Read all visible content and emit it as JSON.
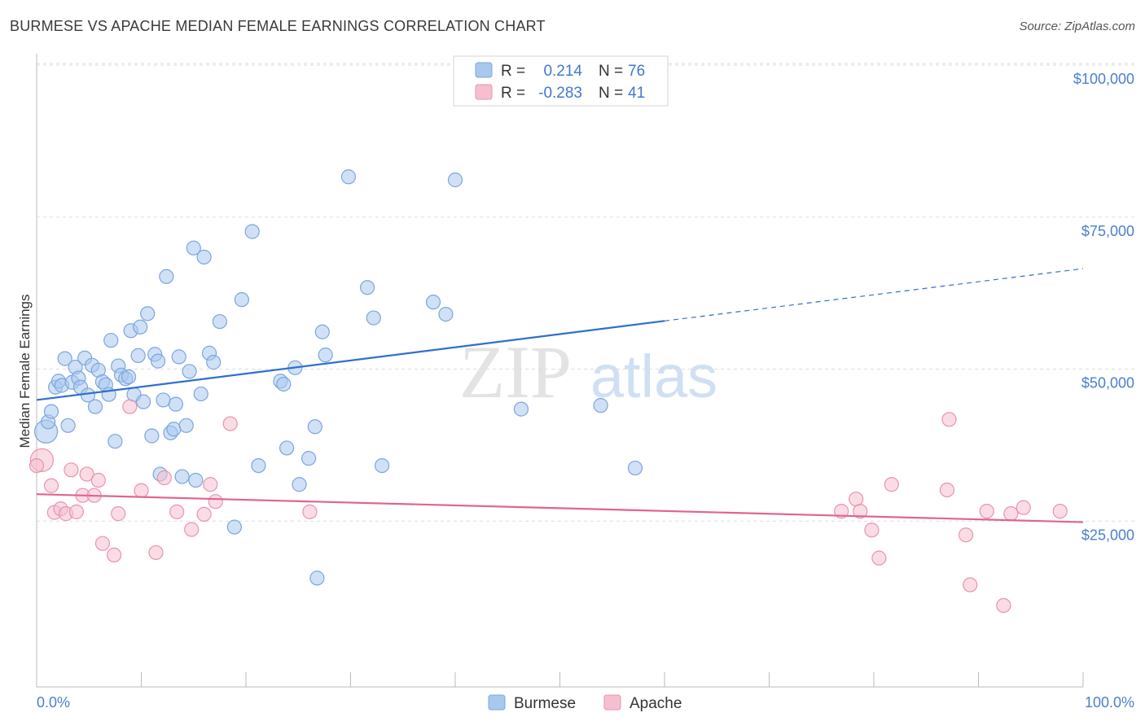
{
  "title": "BURMESE VS APACHE MEDIAN FEMALE EARNINGS CORRELATION CHART",
  "source": "Source: ZipAtlas.com",
  "watermark": {
    "zip": "ZIP",
    "atlas": "atlas"
  },
  "colors": {
    "burmese_fill": "#a9c8ee",
    "burmese_stroke": "#7aa6de",
    "burmese_line": "#2f6fce",
    "apache_fill": "#f6bfd0",
    "apache_stroke": "#e993ae",
    "apache_line": "#e0648f",
    "tick_text": "#4a7fd0",
    "grid": "#dddddd"
  },
  "legend": {
    "r_label": "R =",
    "n_label": "N =",
    "rows": [
      {
        "series": "Burmese",
        "r": "0.214",
        "n": "76"
      },
      {
        "series": "Apache",
        "r": "-0.283",
        "n": "41"
      }
    ]
  },
  "chart_data": {
    "type": "scatter",
    "title": "BURMESE VS APACHE MEDIAN FEMALE EARNINGS CORRELATION CHART",
    "xlabel": "",
    "ylabel": "Median Female Earnings",
    "xlim": [
      0,
      100
    ],
    "ylim": [
      0,
      105000
    ],
    "x_tick_labels": [
      "0.0%",
      "100.0%"
    ],
    "y_ticks": [
      25000,
      50000,
      75000,
      100000
    ],
    "y_tick_labels": [
      "$25,000",
      "$50,000",
      "$75,000",
      "$100,000"
    ],
    "grid": true,
    "legend_position": "top-center",
    "series": [
      {
        "name": "Burmese",
        "trend": {
          "x0": 0,
          "y0": 47200,
          "x1": 60,
          "y1": 60200,
          "dashed_to_x": 100,
          "dashed_to_y": 68800
        },
        "points": [
          {
            "x": 0.9,
            "y": 42000,
            "big": true
          },
          {
            "x": 1.1,
            "y": 43600
          },
          {
            "x": 1.4,
            "y": 45300
          },
          {
            "x": 1.8,
            "y": 49300
          },
          {
            "x": 2.1,
            "y": 50300
          },
          {
            "x": 2.4,
            "y": 49600
          },
          {
            "x": 2.7,
            "y": 54000
          },
          {
            "x": 3.0,
            "y": 43000
          },
          {
            "x": 3.4,
            "y": 50100
          },
          {
            "x": 3.7,
            "y": 52600
          },
          {
            "x": 4.0,
            "y": 50800
          },
          {
            "x": 4.2,
            "y": 49300
          },
          {
            "x": 4.6,
            "y": 54100
          },
          {
            "x": 4.9,
            "y": 48000
          },
          {
            "x": 5.3,
            "y": 52900
          },
          {
            "x": 5.6,
            "y": 46100
          },
          {
            "x": 5.9,
            "y": 52100
          },
          {
            "x": 6.3,
            "y": 50200
          },
          {
            "x": 6.6,
            "y": 49700
          },
          {
            "x": 6.9,
            "y": 48100
          },
          {
            "x": 7.1,
            "y": 57000
          },
          {
            "x": 7.5,
            "y": 40400
          },
          {
            "x": 7.8,
            "y": 52800
          },
          {
            "x": 8.1,
            "y": 51300
          },
          {
            "x": 8.5,
            "y": 50700
          },
          {
            "x": 8.8,
            "y": 51000
          },
          {
            "x": 9.0,
            "y": 58600
          },
          {
            "x": 9.3,
            "y": 48100
          },
          {
            "x": 9.7,
            "y": 54500
          },
          {
            "x": 9.9,
            "y": 59200
          },
          {
            "x": 10.2,
            "y": 46900
          },
          {
            "x": 10.6,
            "y": 61400
          },
          {
            "x": 11.0,
            "y": 41300
          },
          {
            "x": 11.3,
            "y": 54700
          },
          {
            "x": 11.6,
            "y": 53600
          },
          {
            "x": 11.8,
            "y": 35000
          },
          {
            "x": 12.1,
            "y": 47200
          },
          {
            "x": 12.4,
            "y": 67500
          },
          {
            "x": 12.8,
            "y": 41800
          },
          {
            "x": 13.1,
            "y": 42400
          },
          {
            "x": 13.3,
            "y": 46500
          },
          {
            "x": 13.6,
            "y": 54300
          },
          {
            "x": 13.9,
            "y": 34600
          },
          {
            "x": 14.3,
            "y": 43000
          },
          {
            "x": 14.6,
            "y": 51900
          },
          {
            "x": 15.0,
            "y": 72200
          },
          {
            "x": 15.2,
            "y": 34000
          },
          {
            "x": 15.7,
            "y": 48200
          },
          {
            "x": 16.0,
            "y": 70700
          },
          {
            "x": 16.5,
            "y": 54900
          },
          {
            "x": 16.9,
            "y": 53400
          },
          {
            "x": 17.5,
            "y": 60100
          },
          {
            "x": 18.9,
            "y": 26300
          },
          {
            "x": 19.6,
            "y": 63700
          },
          {
            "x": 20.6,
            "y": 74900
          },
          {
            "x": 21.2,
            "y": 36400
          },
          {
            "x": 23.3,
            "y": 50300
          },
          {
            "x": 23.6,
            "y": 49800
          },
          {
            "x": 23.9,
            "y": 39300
          },
          {
            "x": 24.7,
            "y": 52500
          },
          {
            "x": 25.1,
            "y": 33300
          },
          {
            "x": 26.0,
            "y": 37600
          },
          {
            "x": 26.6,
            "y": 42800
          },
          {
            "x": 26.8,
            "y": 17900
          },
          {
            "x": 27.3,
            "y": 58400
          },
          {
            "x": 27.6,
            "y": 54600
          },
          {
            "x": 29.8,
            "y": 83900
          },
          {
            "x": 31.6,
            "y": 65700
          },
          {
            "x": 32.2,
            "y": 60700
          },
          {
            "x": 33.0,
            "y": 36400
          },
          {
            "x": 37.9,
            "y": 63300
          },
          {
            "x": 39.1,
            "y": 61300
          },
          {
            "x": 40.0,
            "y": 83400
          },
          {
            "x": 46.3,
            "y": 45700
          },
          {
            "x": 53.9,
            "y": 46300
          },
          {
            "x": 57.2,
            "y": 36000
          }
        ]
      },
      {
        "name": "Apache",
        "trend": {
          "x0": 0,
          "y0": 31700,
          "x1": 100,
          "y1": 27100
        },
        "points": [
          {
            "x": 0.5,
            "y": 37300,
            "big": true
          },
          {
            "x": 1.4,
            "y": 33100
          },
          {
            "x": 1.7,
            "y": 28700
          },
          {
            "x": 2.3,
            "y": 29300
          },
          {
            "x": 2.8,
            "y": 28500
          },
          {
            "x": 3.3,
            "y": 35700
          },
          {
            "x": 3.8,
            "y": 28800
          },
          {
            "x": 4.4,
            "y": 31500
          },
          {
            "x": 4.8,
            "y": 35000
          },
          {
            "x": 5.5,
            "y": 31500
          },
          {
            "x": 5.9,
            "y": 34000
          },
          {
            "x": 6.3,
            "y": 23600
          },
          {
            "x": 7.4,
            "y": 21700
          },
          {
            "x": 7.8,
            "y": 28500
          },
          {
            "x": 8.9,
            "y": 46100
          },
          {
            "x": 10.0,
            "y": 32300
          },
          {
            "x": 11.4,
            "y": 22100
          },
          {
            "x": 12.2,
            "y": 34400
          },
          {
            "x": 13.4,
            "y": 28800
          },
          {
            "x": 14.8,
            "y": 25900
          },
          {
            "x": 16.0,
            "y": 28400
          },
          {
            "x": 16.6,
            "y": 33300
          },
          {
            "x": 17.1,
            "y": 30500
          },
          {
            "x": 18.5,
            "y": 43300
          },
          {
            "x": 26.1,
            "y": 28800
          },
          {
            "x": 76.9,
            "y": 28900
          },
          {
            "x": 78.3,
            "y": 30900
          },
          {
            "x": 78.7,
            "y": 28900
          },
          {
            "x": 79.8,
            "y": 25800
          },
          {
            "x": 80.5,
            "y": 21200
          },
          {
            "x": 81.7,
            "y": 33300
          },
          {
            "x": 87.0,
            "y": 32400
          },
          {
            "x": 87.2,
            "y": 44000
          },
          {
            "x": 88.8,
            "y": 25000
          },
          {
            "x": 89.2,
            "y": 16800
          },
          {
            "x": 90.8,
            "y": 28900
          },
          {
            "x": 92.4,
            "y": 13400
          },
          {
            "x": 93.1,
            "y": 28500
          },
          {
            "x": 94.3,
            "y": 29500
          },
          {
            "x": 97.8,
            "y": 28900
          },
          {
            "x": 0.0,
            "y": 36400
          }
        ]
      }
    ]
  }
}
